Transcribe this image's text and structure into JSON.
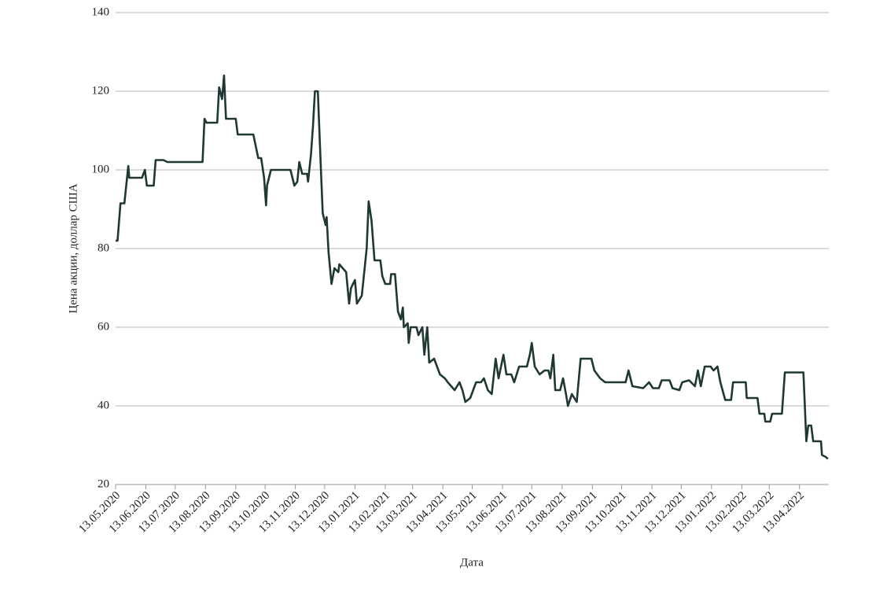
{
  "chart_data": {
    "type": "line",
    "ylabel": "Цена акции, доллар США",
    "xlabel": "Дата",
    "color": "#1f3833",
    "grid": true,
    "ylim": [
      20,
      140
    ],
    "yticks": [
      20,
      40,
      60,
      80,
      100,
      120,
      140
    ],
    "xlim": [
      "2020-05-13",
      "2022-05-13"
    ],
    "xticks": [
      {
        "value": "2020-05-13",
        "label": "13.05.2020"
      },
      {
        "value": "2020-06-13",
        "label": "13.06.2020"
      },
      {
        "value": "2020-07-13",
        "label": "13.07.2020"
      },
      {
        "value": "2020-08-13",
        "label": "13.08.2020"
      },
      {
        "value": "2020-09-13",
        "label": "13.09.2020"
      },
      {
        "value": "2020-10-13",
        "label": "13.10.2020"
      },
      {
        "value": "2020-11-13",
        "label": "13.11.2020"
      },
      {
        "value": "2020-12-13",
        "label": "13.12.2020"
      },
      {
        "value": "2021-01-13",
        "label": "13.01.2021"
      },
      {
        "value": "2021-02-13",
        "label": "13.02.2021"
      },
      {
        "value": "2021-03-13",
        "label": "13.03.2021"
      },
      {
        "value": "2021-04-13",
        "label": "13.04.2021"
      },
      {
        "value": "2021-05-13",
        "label": "13.05.2021"
      },
      {
        "value": "2021-06-13",
        "label": "13.06.2021"
      },
      {
        "value": "2021-07-13",
        "label": "13.07.2021"
      },
      {
        "value": "2021-08-13",
        "label": "13.08.2021"
      },
      {
        "value": "2021-09-13",
        "label": "13.09.2021"
      },
      {
        "value": "2021-10-13",
        "label": "13.10.2021"
      },
      {
        "value": "2021-11-13",
        "label": "13.11.2021"
      },
      {
        "value": "2021-12-13",
        "label": "13.12.2021"
      },
      {
        "value": "2022-01-13",
        "label": "13.01.2022"
      },
      {
        "value": "2022-02-13",
        "label": "13.02.2022"
      },
      {
        "value": "2022-03-13",
        "label": "13.03.2022"
      },
      {
        "value": "2022-04-13",
        "label": "13.04.2022"
      }
    ],
    "x": [
      "2020-05-13",
      "2020-05-15",
      "2020-05-18",
      "2020-05-22",
      "2020-05-26",
      "2020-05-27",
      "2020-06-09",
      "2020-06-12",
      "2020-06-14",
      "2020-06-21",
      "2020-06-23",
      "2020-07-01",
      "2020-07-05",
      "2020-08-10",
      "2020-08-12",
      "2020-08-14",
      "2020-08-25",
      "2020-08-27",
      "2020-08-30",
      "2020-09-01",
      "2020-09-03",
      "2020-09-13",
      "2020-09-15",
      "2020-10-01",
      "2020-10-06",
      "2020-10-09",
      "2020-10-12",
      "2020-10-14",
      "2020-10-15",
      "2020-10-19",
      "2020-11-08",
      "2020-11-12",
      "2020-11-15",
      "2020-11-17",
      "2020-11-20",
      "2020-11-25",
      "2020-11-26",
      "2020-11-29",
      "2020-12-01",
      "2020-12-03",
      "2020-12-06",
      "2020-12-09",
      "2020-12-11",
      "2020-12-14",
      "2020-12-15",
      "2020-12-17",
      "2020-12-20",
      "2020-12-23",
      "2020-12-27",
      "2020-12-28",
      "2021-01-04",
      "2021-01-07",
      "2021-01-09",
      "2021-01-13",
      "2021-01-15",
      "2021-01-20",
      "2021-01-25",
      "2021-01-27",
      "2021-01-30",
      "2021-02-02",
      "2021-02-08",
      "2021-02-10",
      "2021-02-13",
      "2021-02-18",
      "2021-02-19",
      "2021-02-23",
      "2021-02-26",
      "2021-03-01",
      "2021-03-03",
      "2021-03-04",
      "2021-03-08",
      "2021-03-09",
      "2021-03-11",
      "2021-03-17",
      "2021-03-19",
      "2021-03-23",
      "2021-03-25",
      "2021-03-28",
      "2021-03-30",
      "2021-04-04",
      "2021-04-07",
      "2021-04-10",
      "2021-04-15",
      "2021-04-18",
      "2021-04-25",
      "2021-04-30",
      "2021-05-03",
      "2021-05-06",
      "2021-05-11",
      "2021-05-14",
      "2021-05-17",
      "2021-05-22",
      "2021-05-25",
      "2021-05-29",
      "2021-06-02",
      "2021-06-06",
      "2021-06-09",
      "2021-06-14",
      "2021-06-17",
      "2021-06-22",
      "2021-06-25",
      "2021-06-30",
      "2021-07-08",
      "2021-07-11",
      "2021-07-13",
      "2021-07-16",
      "2021-07-21",
      "2021-07-26",
      "2021-07-30",
      "2021-08-01",
      "2021-08-04",
      "2021-08-06",
      "2021-08-11",
      "2021-08-14",
      "2021-08-17",
      "2021-08-19",
      "2021-08-23",
      "2021-08-28",
      "2021-09-01",
      "2021-09-12",
      "2021-09-15",
      "2021-09-21",
      "2021-09-26",
      "2021-10-17",
      "2021-10-20",
      "2021-10-24",
      "2021-11-04",
      "2021-11-10",
      "2021-11-14",
      "2021-11-20",
      "2021-11-23",
      "2021-12-01",
      "2021-12-04",
      "2021-12-11",
      "2021-12-14",
      "2021-12-21",
      "2021-12-27",
      "2021-12-30",
      "2022-01-02",
      "2022-01-06",
      "2022-01-12",
      "2022-01-15",
      "2022-01-19",
      "2022-01-22",
      "2022-01-27",
      "2022-02-02",
      "2022-02-04",
      "2022-02-17",
      "2022-02-18",
      "2022-03-01",
      "2022-03-03",
      "2022-03-08",
      "2022-03-09",
      "2022-03-14",
      "2022-03-16",
      "2022-03-26",
      "2022-03-29",
      "2022-04-17",
      "2022-04-20",
      "2022-04-22",
      "2022-04-25",
      "2022-04-27",
      "2022-05-05",
      "2022-05-06",
      "2022-05-10",
      "2022-05-12"
    ],
    "values": [
      82,
      82,
      91.5,
      91.5,
      101,
      98,
      98,
      100,
      96,
      96,
      102.5,
      102.5,
      102,
      102,
      113,
      112,
      112,
      121,
      118,
      124,
      113,
      113,
      109,
      109,
      103,
      103,
      98,
      91,
      96,
      100,
      100,
      96,
      97,
      102,
      99,
      99,
      97,
      104,
      111,
      120,
      120,
      101,
      89,
      86,
      88,
      79,
      71,
      75,
      74,
      76,
      74,
      66,
      70,
      72,
      66,
      68,
      80,
      92,
      87,
      77,
      77,
      73,
      71,
      71,
      73.5,
      73.5,
      64,
      62,
      65,
      60,
      61,
      56,
      60,
      60,
      58,
      60,
      53,
      60,
      51,
      52,
      50,
      48,
      47,
      46,
      44,
      46,
      44,
      41,
      42,
      44,
      46,
      46,
      47,
      44,
      43,
      52,
      47,
      53,
      48,
      48,
      46,
      50,
      50,
      53,
      56,
      50,
      48,
      49,
      49,
      47,
      53,
      44,
      44,
      47,
      43,
      40,
      43,
      41,
      52,
      52,
      49,
      47,
      46,
      46,
      49,
      45,
      44.5,
      46,
      44.5,
      44.5,
      46.5,
      46.5,
      44.5,
      44,
      46,
      46.5,
      45,
      49,
      45,
      50,
      50,
      49,
      50,
      46,
      41.5,
      41.5,
      46,
      46,
      42,
      42,
      38,
      38,
      36,
      36,
      38,
      38,
      48.5,
      48.5,
      31,
      35,
      35,
      31,
      31,
      27.5,
      27,
      26.5
    ]
  }
}
